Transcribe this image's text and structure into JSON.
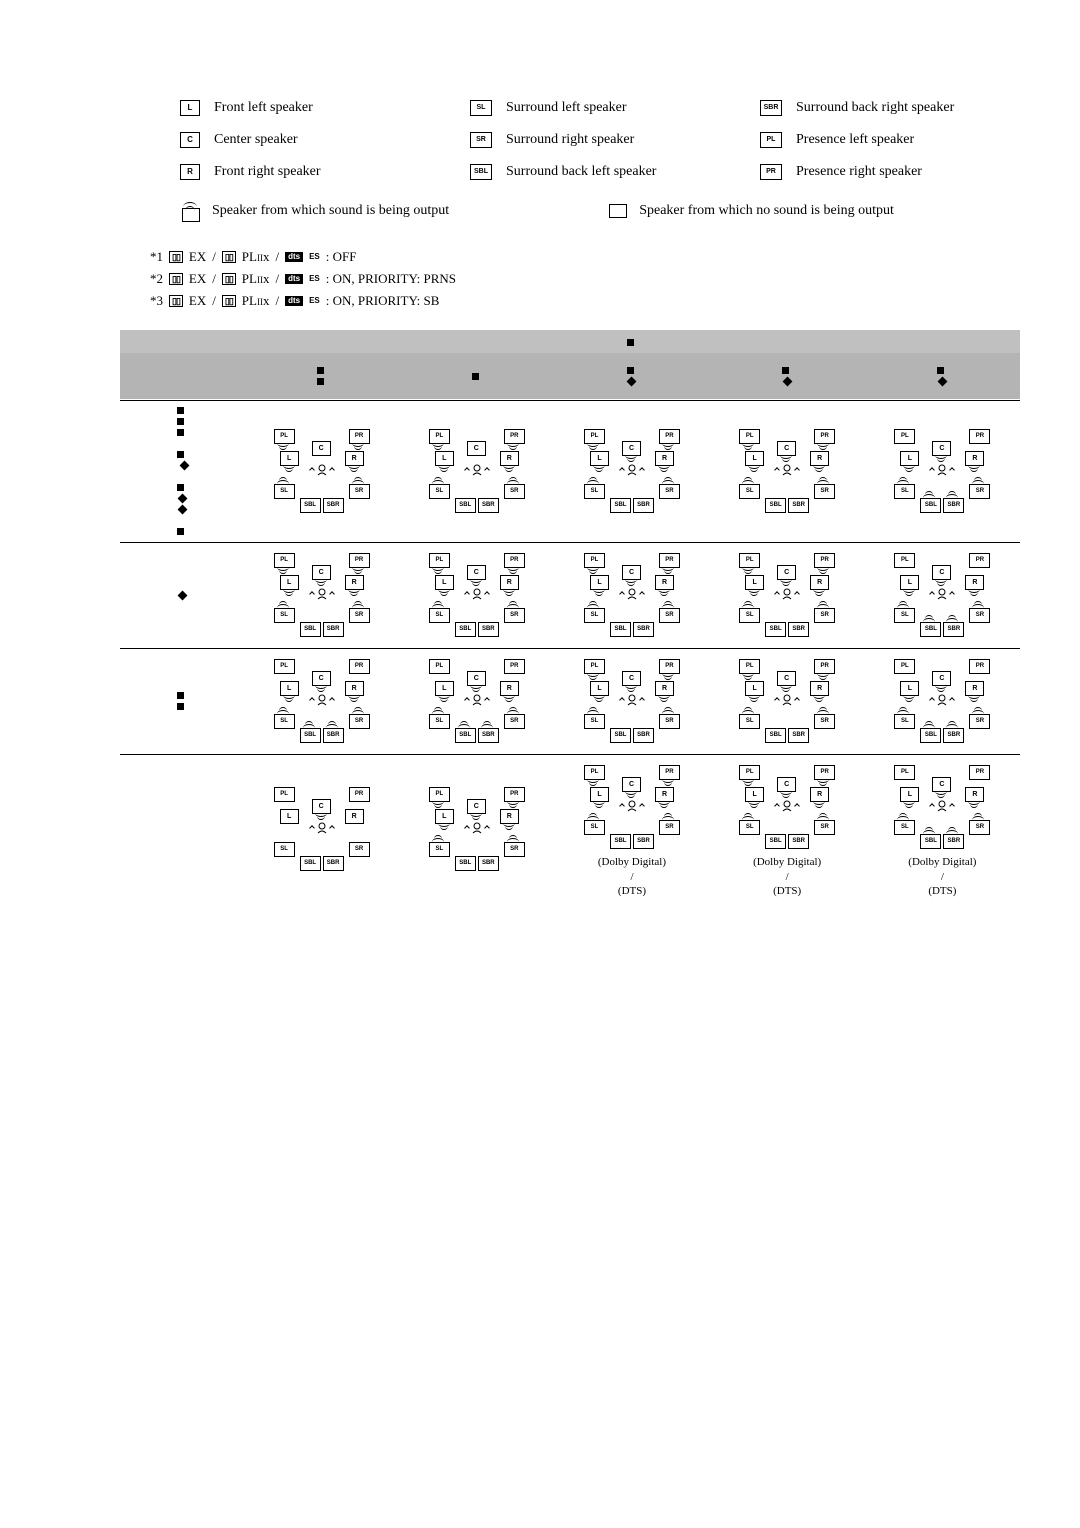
{
  "legend": {
    "L": "Front left speaker",
    "C": "Center speaker",
    "R": "Front right speaker",
    "SL": "Surround left speaker",
    "SR": "Surround right speaker",
    "SBL": "Surround back left speaker",
    "SBR": "Surround back right speaker",
    "PL": "Presence left speaker",
    "PR": "Presence right speaker",
    "active": "Speaker from which sound is being output",
    "inactive": "Speaker from which no sound is being output"
  },
  "footnotes": {
    "f1a": "*1 ",
    "f1b": " : OFF",
    "f2a": "*2 ",
    "f2b": " : ON, PRIORITY: PRNS",
    "f3a": "*3 ",
    "f3b": " : ON, PRIORITY: SB",
    "sep": " / ",
    "es": "ES"
  },
  "below": {
    "dd": "(Dolby Digital)",
    "sl": "/",
    "dts": "(DTS)"
  },
  "labels": {
    "PL": "PL",
    "PR": "PR",
    "C": "C",
    "L": "L",
    "R": "R",
    "SL": "SL",
    "SR": "SR",
    "SBL": "SBL",
    "SBR": "SBR"
  },
  "diagrams": {
    "type": "speaker-layout-matrix",
    "rows": 4,
    "cols": 5,
    "cells": [
      [
        {
          "PL": "a",
          "PR": "a",
          "L": "a",
          "C": "i",
          "R": "a",
          "head": "a",
          "SL": "u",
          "SR": "u",
          "SBL": "i",
          "SBR": "i"
        },
        {
          "PL": "a",
          "PR": "a",
          "L": "a",
          "C": "i",
          "R": "a",
          "head": "a",
          "SL": "u",
          "SR": "u",
          "SBL": "i",
          "SBR": "i"
        },
        {
          "PL": "a",
          "PR": "a",
          "L": "a",
          "C": "a",
          "R": "a",
          "head": "a",
          "SL": "u",
          "SR": "u",
          "SBL": "i",
          "SBR": "i"
        },
        {
          "PL": "a",
          "PR": "a",
          "L": "a",
          "C": "a",
          "R": "a",
          "head": "a",
          "SL": "u",
          "SR": "u",
          "SBL": "i",
          "SBR": "i"
        },
        {
          "PL": "i",
          "PR": "i",
          "L": "a",
          "C": "a",
          "R": "a",
          "head": "a",
          "SL": "u",
          "SR": "u",
          "SBL": "u",
          "SBR": "u"
        }
      ],
      [
        {
          "PL": "a",
          "PR": "a",
          "L": "a",
          "C": "a",
          "R": "a",
          "head": "a",
          "SL": "u",
          "SR": "u",
          "SBL": "i",
          "SBR": "i"
        },
        {
          "PL": "a",
          "PR": "a",
          "L": "a",
          "C": "a",
          "R": "a",
          "head": "a",
          "SL": "u",
          "SR": "u",
          "SBL": "i",
          "SBR": "i"
        },
        {
          "PL": "a",
          "PR": "a",
          "L": "a",
          "C": "a",
          "R": "a",
          "head": "a",
          "SL": "u",
          "SR": "u",
          "SBL": "i",
          "SBR": "i"
        },
        {
          "PL": "a",
          "PR": "a",
          "L": "a",
          "C": "a",
          "R": "a",
          "head": "a",
          "SL": "u",
          "SR": "u",
          "SBL": "i",
          "SBR": "i"
        },
        {
          "PL": "i",
          "PR": "i",
          "L": "a",
          "C": "a",
          "R": "a",
          "head": "a",
          "SL": "u",
          "SR": "u",
          "SBL": "u",
          "SBR": "u"
        }
      ],
      [
        {
          "PL": "i",
          "PR": "i",
          "L": "a",
          "C": "a",
          "R": "a",
          "head": "a",
          "SL": "u",
          "SR": "u",
          "SBL": "u",
          "SBR": "u"
        },
        {
          "PL": "i",
          "PR": "i",
          "L": "a",
          "C": "a",
          "R": "a",
          "head": "a",
          "SL": "u",
          "SR": "u",
          "SBL": "u",
          "SBR": "u"
        },
        {
          "PL": "a",
          "PR": "a",
          "L": "a",
          "C": "a",
          "R": "a",
          "head": "a",
          "SL": "u",
          "SR": "u",
          "SBL": "i",
          "SBR": "i"
        },
        {
          "PL": "a",
          "PR": "a",
          "L": "a",
          "C": "a",
          "R": "a",
          "head": "a",
          "SL": "u",
          "SR": "u",
          "SBL": "i",
          "SBR": "i"
        },
        {
          "PL": "i",
          "PR": "i",
          "L": "a",
          "C": "a",
          "R": "a",
          "head": "a",
          "SL": "u",
          "SR": "u",
          "SBL": "u",
          "SBR": "u"
        }
      ],
      [
        {
          "PL": "i",
          "PR": "i",
          "L": "i",
          "C": "a",
          "R": "i",
          "head": "a",
          "SL": "i",
          "SR": "i",
          "SBL": "i",
          "SBR": "i"
        },
        {
          "PL": "a",
          "PR": "a",
          "L": "a",
          "C": "a",
          "R": "a",
          "head": "a",
          "SL": "u",
          "SR": "u",
          "SBL": "i",
          "SBR": "i"
        },
        {
          "PL": "a",
          "PR": "a",
          "L": "a",
          "C": "a",
          "R": "a",
          "head": "a",
          "SL": "u",
          "SR": "u",
          "SBL": "i",
          "SBR": "i"
        },
        {
          "PL": "a",
          "PR": "a",
          "L": "a",
          "C": "a",
          "R": "a",
          "head": "a",
          "SL": "u",
          "SR": "u",
          "SBL": "i",
          "SBR": "i"
        },
        {
          "PL": "i",
          "PR": "i",
          "L": "a",
          "C": "a",
          "R": "a",
          "head": "a",
          "SL": "u",
          "SR": "u",
          "SBL": "u",
          "SBR": "u"
        }
      ]
    ]
  }
}
